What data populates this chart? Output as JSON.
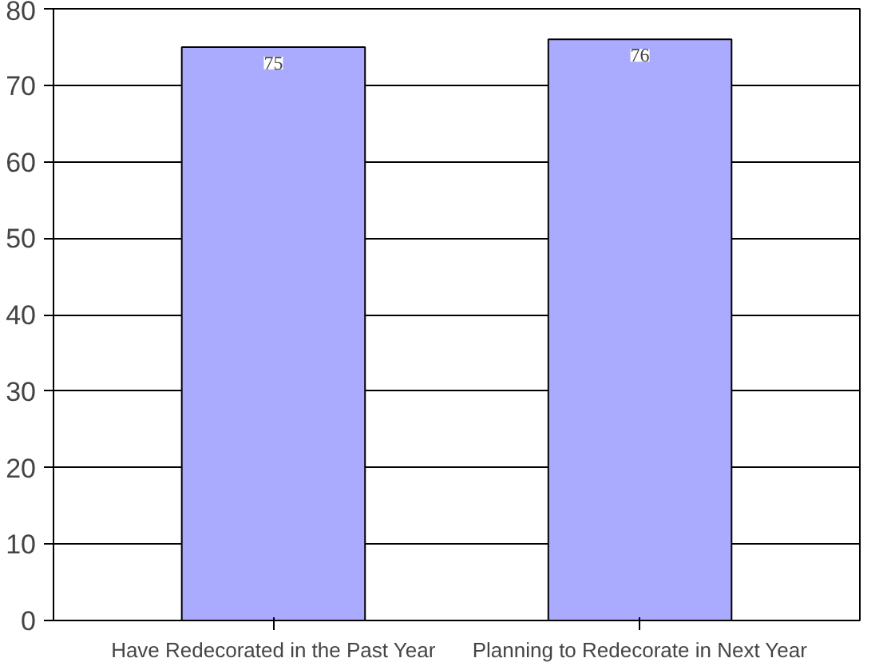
{
  "chart_data": {
    "type": "bar",
    "categories": [
      "Have Redecorated in the Past Year",
      "Planning to Redecorate in Next Year"
    ],
    "values": [
      75,
      76
    ],
    "color": "#aaaaff",
    "ylim": [
      0,
      80
    ],
    "yticks": [
      0,
      10,
      20,
      30,
      40,
      50,
      60,
      70,
      80
    ],
    "grid": "y",
    "data_labels": true
  }
}
